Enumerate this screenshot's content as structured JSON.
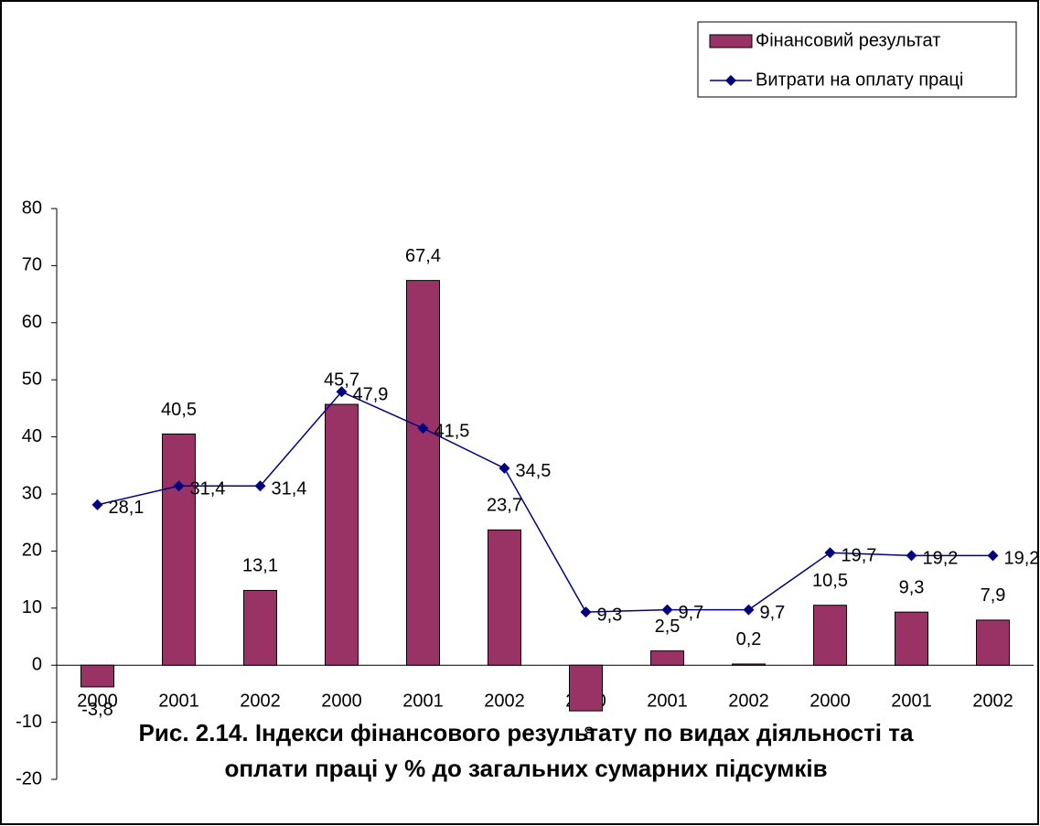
{
  "chart_data": {
    "type": "bar_line",
    "title": "Рис. 2.14. Індекси фінансового результату по видах діяльності та оплати праці у % до загальних сумарних підсумків",
    "categories": [
      "2000",
      "2001",
      "2002",
      "2000",
      "2001",
      "2002",
      "2000",
      "2001",
      "2002",
      "2000",
      "2001",
      "2002"
    ],
    "series": [
      {
        "name": "Фінансовий результат",
        "type": "bar",
        "color": "#993366",
        "values": [
          -3.8,
          40.5,
          13.1,
          45.7,
          67.4,
          23.7,
          -8,
          2.5,
          0.2,
          10.5,
          9.3,
          7.9
        ],
        "value_labels": [
          "-3,8",
          "40,5",
          "13,1",
          "45,7",
          "67,4",
          "23,7",
          "-8",
          "2,5",
          "0,2",
          "10,5",
          "9,3",
          "7,9"
        ]
      },
      {
        "name": "Витрати на оплату праці",
        "type": "line",
        "color": "#000080",
        "values": [
          28.1,
          31.4,
          31.4,
          47.9,
          41.5,
          34.5,
          9.3,
          9.7,
          9.7,
          19.7,
          19.2,
          19.2
        ],
        "value_labels": [
          "28,1",
          "31,4",
          "31,4",
          "47,9",
          "41,5",
          "34,5",
          "9,3",
          "9,7",
          "9,7",
          "19,7",
          "19,2",
          "19,2"
        ]
      }
    ],
    "ylim": [
      -20,
      80
    ],
    "yticks": [
      -20,
      -10,
      0,
      10,
      20,
      30,
      40,
      50,
      60,
      70,
      80
    ],
    "legend": "top-right"
  }
}
